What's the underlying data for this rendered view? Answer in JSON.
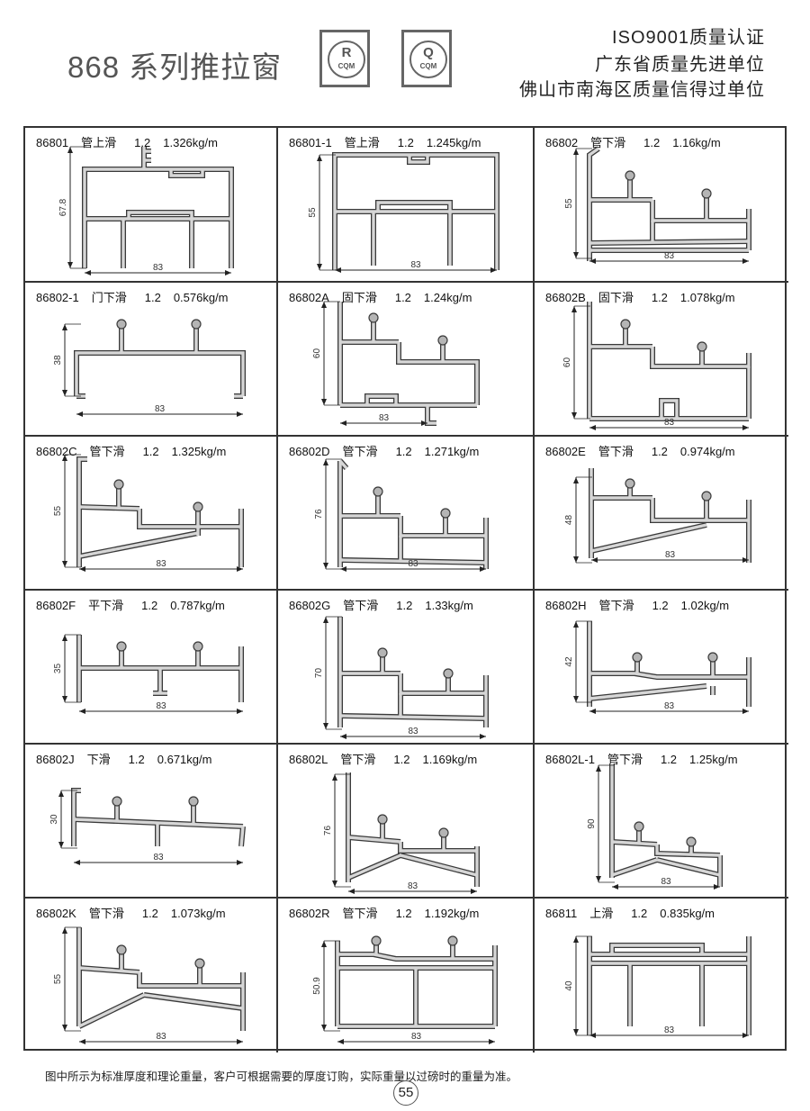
{
  "header": {
    "title": "868 系列推拉窗",
    "logos": [
      {
        "letter": "R",
        "text": "CQM"
      },
      {
        "letter": "Q",
        "text": "CQM"
      }
    ],
    "certifications": [
      "ISO9001质量认证",
      "广东省质量先进单位",
      "佛山市南海区质量信得过单位"
    ]
  },
  "items": [
    {
      "code": "86801",
      "name": "管上滑",
      "thickness": "1.2",
      "weight": "1.326kg/m",
      "height": "67.8",
      "width": "83"
    },
    {
      "code": "86801-1",
      "name": "管上滑",
      "thickness": "1.2",
      "weight": "1.245kg/m",
      "height": "55",
      "width": "83"
    },
    {
      "code": "86802",
      "name": "管下滑",
      "thickness": "1.2",
      "weight": "1.16kg/m",
      "height": "55",
      "width": "83"
    },
    {
      "code": "86802-1",
      "name": "门下滑",
      "thickness": "1.2",
      "weight": "0.576kg/m",
      "height": "38",
      "width": "83"
    },
    {
      "code": "86802A",
      "name": "固下滑",
      "thickness": "1.2",
      "weight": "1.24kg/m",
      "height": "60",
      "width": "83"
    },
    {
      "code": "86802B",
      "name": "固下滑",
      "thickness": "1.2",
      "weight": "1.078kg/m",
      "height": "60",
      "width": "83"
    },
    {
      "code": "86802C",
      "name": "管下滑",
      "thickness": "1.2",
      "weight": "1.325kg/m",
      "height": "55",
      "width": "83"
    },
    {
      "code": "86802D",
      "name": "管下滑",
      "thickness": "1.2",
      "weight": "1.271kg/m",
      "height": "76",
      "width": "83"
    },
    {
      "code": "86802E",
      "name": "管下滑",
      "thickness": "1.2",
      "weight": "0.974kg/m",
      "height": "48",
      "width": "83"
    },
    {
      "code": "86802F",
      "name": "平下滑",
      "thickness": "1.2",
      "weight": "0.787kg/m",
      "height": "35",
      "width": "83"
    },
    {
      "code": "86802G",
      "name": "管下滑",
      "thickness": "1.2",
      "weight": "1.33kg/m",
      "height": "70",
      "width": "83"
    },
    {
      "code": "86802H",
      "name": "管下滑",
      "thickness": "1.2",
      "weight": "1.02kg/m",
      "height": "42",
      "width": "83"
    },
    {
      "code": "86802J",
      "name": "下滑",
      "thickness": "1.2",
      "weight": "0.671kg/m",
      "height": "30",
      "width": "83"
    },
    {
      "code": "86802L",
      "name": "管下滑",
      "thickness": "1.2",
      "weight": "1.169kg/m",
      "height": "76",
      "width": "83"
    },
    {
      "code": "86802L-1",
      "name": "管下滑",
      "thickness": "1.2",
      "weight": "1.25kg/m",
      "height": "90",
      "width": "83"
    },
    {
      "code": "86802K",
      "name": "管下滑",
      "thickness": "1.2",
      "weight": "1.073kg/m",
      "height": "55",
      "width": "83"
    },
    {
      "code": "86802R",
      "name": "管下滑",
      "thickness": "1.2",
      "weight": "1.192kg/m",
      "height": "50.9",
      "width": "83"
    },
    {
      "code": "86811",
      "name": "上滑",
      "thickness": "1.2",
      "weight": "0.835kg/m",
      "height": "40",
      "width": "83"
    }
  ],
  "footer": {
    "note": "图中所示为标准厚度和理论重量，客户可根据需要的厚度订购，实际重量以过磅时的重量为准。",
    "page_number": "55"
  }
}
